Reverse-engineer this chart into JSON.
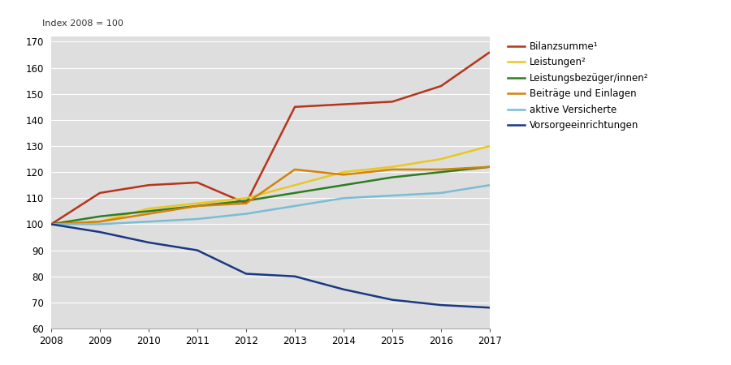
{
  "years": [
    2008,
    2009,
    2010,
    2011,
    2012,
    2013,
    2014,
    2015,
    2016,
    2017
  ],
  "series": [
    {
      "name": "Bilanzsumme¹",
      "values": [
        100,
        112,
        115,
        116,
        108,
        145,
        146,
        147,
        153,
        166
      ],
      "color": "#b5341c",
      "linewidth": 1.8
    },
    {
      "name": "Leistungen²",
      "values": [
        100,
        101,
        106,
        108,
        110,
        115,
        120,
        122,
        125,
        130
      ],
      "color": "#e8c820",
      "linewidth": 1.8
    },
    {
      "name": "Leistungsbezüger/innen²",
      "values": [
        100,
        103,
        105,
        107,
        109,
        112,
        115,
        118,
        120,
        122
      ],
      "color": "#2e7d20",
      "linewidth": 1.8
    },
    {
      "name": "Beiträge und Einlagen",
      "values": [
        100,
        101,
        104,
        107,
        108,
        121,
        119,
        121,
        121,
        122
      ],
      "color": "#d4820a",
      "linewidth": 1.8
    },
    {
      "name": "aktive Versicherte",
      "values": [
        100,
        100,
        101,
        102,
        104,
        107,
        110,
        111,
        112,
        115
      ],
      "color": "#7bbcd5",
      "linewidth": 1.8
    },
    {
      "name": "Vorsorgeeinrichtungen",
      "values": [
        100,
        97,
        93,
        90,
        81,
        80,
        75,
        71,
        69,
        68
      ],
      "color": "#1a3882",
      "linewidth": 1.8
    }
  ],
  "ylim": [
    60,
    172
  ],
  "yticks": [
    60,
    70,
    80,
    90,
    100,
    110,
    120,
    130,
    140,
    150,
    160,
    170
  ],
  "ylabel_text": "Index 2008 = 100",
  "fig_facecolor": "#ffffff",
  "plot_bg_color": "#dedede",
  "grid_color": "#ffffff",
  "grid_linewidth": 0.8,
  "spine_color": "#aaaaaa",
  "tick_labelsize": 8.5,
  "legend_fontsize": 8.5,
  "legend_labelspacing": 0.55,
  "legend_handlelength": 1.8
}
